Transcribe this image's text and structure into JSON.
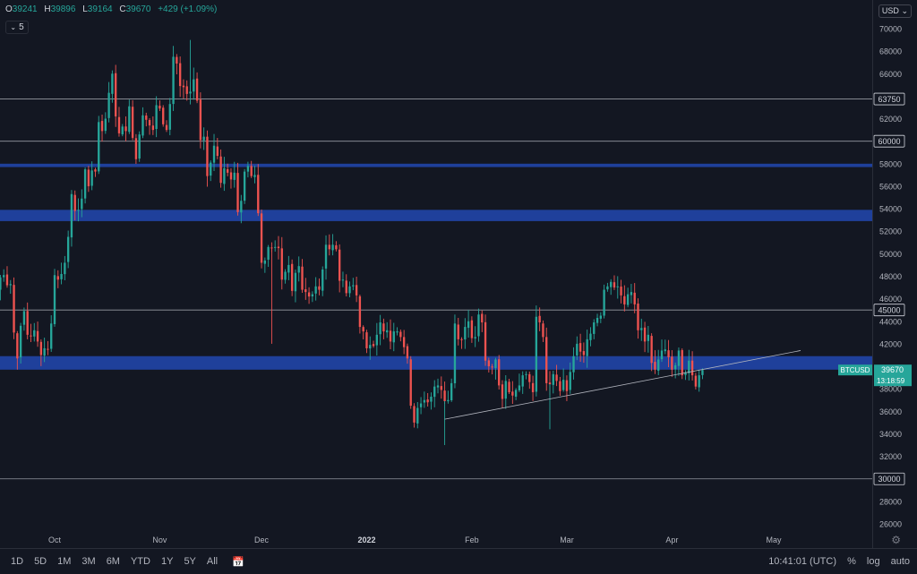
{
  "header": {
    "ohlc": [
      {
        "key": "O",
        "value": "39241"
      },
      {
        "key": "H",
        "value": "39896"
      },
      {
        "key": "L",
        "value": "39164"
      },
      {
        "key": "C",
        "value": "39670"
      }
    ],
    "change": "+429 (+1.09%)",
    "interval": "5",
    "currency": "USD"
  },
  "bottom": {
    "timeframes": [
      "1D",
      "5D",
      "1M",
      "3M",
      "6M",
      "YTD",
      "1Y",
      "5Y",
      "All"
    ],
    "clock": "10:41:01 (UTC)",
    "options": [
      "%",
      "log",
      "auto"
    ]
  },
  "colors": {
    "up": "#26a69a",
    "down": "#ef5350",
    "zone": "#2962ff",
    "background": "#131722"
  },
  "chart_data": {
    "type": "candlestick",
    "symbol": "BTCUSD",
    "last_price": "39670",
    "countdown": "13:18:59",
    "yaxis": {
      "range": [
        25000,
        71000
      ],
      "ticks": [
        26000,
        28000,
        32000,
        34000,
        36000,
        38000,
        42000,
        44000,
        46000,
        48000,
        50000,
        52000,
        54000,
        56000,
        58000,
        62000,
        64000,
        66000,
        68000,
        70000
      ],
      "tick_labels": [
        "26000",
        "28000",
        "32000",
        "34000",
        "36000",
        "38000",
        "42000",
        "44000",
        "46000",
        "48000",
        "50000",
        "52000",
        "54000",
        "56000",
        "58000",
        "62000",
        "64000",
        "66000",
        "68000",
        "70000"
      ]
    },
    "xaxis": {
      "range": [
        "2021-09-13",
        "2022-05-26"
      ],
      "labels": [
        {
          "date": "2021-10-01",
          "text": "Oct"
        },
        {
          "date": "2021-11-01",
          "text": "Nov"
        },
        {
          "date": "2021-12-01",
          "text": "Dec"
        },
        {
          "date": "2022-01-01",
          "text": "2022"
        },
        {
          "date": "2022-02-01",
          "text": "Feb"
        },
        {
          "date": "2022-03-01",
          "text": "Mar"
        },
        {
          "date": "2022-04-01",
          "text": "Apr"
        },
        {
          "date": "2022-05-01",
          "text": "May"
        }
      ]
    },
    "horizontal_levels": [
      {
        "value": 63750,
        "label": "63750"
      },
      {
        "value": 60000,
        "label": "60000"
      },
      {
        "value": 45000,
        "label": "45000"
      },
      {
        "value": 30000,
        "label": "30000"
      }
    ],
    "zones": [
      {
        "from": 57700,
        "to": 58000
      },
      {
        "from": 52900,
        "to": 53900
      },
      {
        "from": 39700,
        "to": 40900
      }
    ],
    "trendline": {
      "from": {
        "date": "2022-01-24",
        "value": 35300
      },
      "to": {
        "date": "2022-05-01",
        "value": 41000
      }
    },
    "candles": {
      "start_date": "2021-09-13",
      "closes": [
        46100,
        46800,
        47900,
        48100,
        47200,
        47300,
        43000,
        40700,
        43600,
        44900,
        42800,
        42700,
        43200,
        42200,
        41000,
        41600,
        41500,
        43800,
        48100,
        47700,
        48200,
        49200,
        51500,
        55300,
        53800,
        53900,
        54900,
        57500,
        56000,
        57400,
        57300,
        61700,
        60900,
        62000,
        64300,
        66000,
        62200,
        60700,
        61300,
        60900,
        63100,
        60300,
        58400,
        60600,
        62300,
        61900,
        61400,
        61000,
        63200,
        62900,
        61500,
        61000,
        63300,
        67500,
        66900,
        64900,
        64800,
        64200,
        64400,
        65500,
        63600,
        60100,
        60400,
        56900,
        58100,
        59600,
        58700,
        56300,
        57600,
        57200,
        56600,
        57200,
        53700,
        54700,
        57300,
        57800,
        56900,
        57000,
        53600,
        49200,
        49400,
        50600,
        50500,
        50600,
        50500,
        47700,
        48400,
        49000,
        46700,
        48300,
        48900,
        46800,
        46600,
        46200,
        46400,
        47100,
        46800,
        48600,
        50800,
        50400,
        50800,
        50400,
        47600,
        47700,
        46500,
        47100,
        47200,
        46300,
        43500,
        43100,
        41600,
        41900,
        41800,
        42800,
        43900,
        43100,
        43200,
        42200,
        43100,
        43100,
        42600,
        41700,
        40700,
        36500,
        35000,
        36300,
        36700,
        37000,
        36800,
        37300,
        38200,
        38300,
        37900,
        36900,
        37000,
        38500,
        43800,
        42400,
        42400,
        43500,
        44000,
        42500,
        42600,
        44600,
        43900,
        40500,
        40000,
        39900,
        40600,
        38300,
        37100,
        38700,
        37700,
        37400,
        37900,
        38300,
        39200,
        39300,
        38600,
        37700,
        44400,
        43900,
        42600,
        38500,
        38400,
        39300,
        38700,
        37800,
        38800,
        37800,
        39500,
        40900,
        42000,
        41300,
        41000,
        42400,
        42900,
        43900,
        44300,
        44500,
        46800,
        47100,
        47500,
        47000,
        47100,
        46300,
        45500,
        46400,
        46600,
        45500,
        43200,
        43400,
        42200,
        42800,
        40300,
        39700,
        40600,
        41400,
        41500,
        40800,
        39700,
        40100,
        41400,
        39200,
        39400,
        40500,
        39200,
        38200,
        39200,
        39670
      ]
    }
  }
}
